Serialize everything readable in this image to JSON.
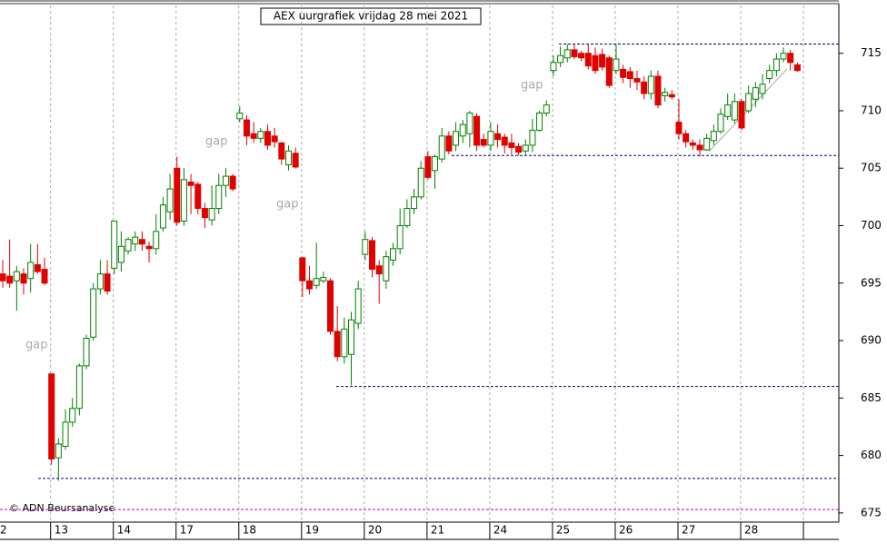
{
  "chart_data": {
    "type": "candlestick",
    "title": "AEX uurgrafiek vrijdag 28 mei 2021",
    "credit": "© ADN Beursanalyse",
    "annotations": [
      "gap",
      "gap",
      "gap",
      "gap"
    ],
    "categories": [
      "2",
      null,
      null,
      null,
      null,
      null,
      null,
      "13",
      null,
      null,
      null,
      null,
      null,
      null,
      null,
      null,
      "14",
      null,
      null,
      null,
      null,
      null,
      null,
      null,
      null,
      "17",
      null,
      null,
      null,
      null,
      null,
      null,
      null,
      null,
      "18",
      null,
      null,
      null,
      null,
      null,
      null,
      null,
      null,
      "19",
      null,
      null,
      null,
      null,
      null,
      null,
      null,
      null,
      "20",
      null,
      null,
      null,
      null,
      null,
      null,
      null,
      null,
      "21",
      null,
      null,
      null,
      null,
      null,
      null,
      null,
      null,
      "24",
      null,
      null,
      null,
      null,
      null,
      null,
      null,
      null,
      "25",
      null,
      null,
      null,
      null,
      null,
      null,
      null,
      null,
      "26",
      null,
      null,
      null,
      null,
      null,
      null,
      null,
      null,
      "27",
      null,
      null,
      null,
      null,
      null,
      null,
      null,
      null,
      "28",
      null,
      null,
      null,
      null,
      null,
      null,
      null,
      null
    ],
    "open": [
      695.8,
      695.6,
      695.2,
      695.8,
      695.4,
      696.6,
      696.2,
      687.1,
      679.8,
      680.8,
      682.9,
      684.1,
      687.8,
      690.3,
      694.5,
      695.8,
      696.3,
      696.8,
      697.8,
      698.4,
      698.8,
      698.2,
      698.0,
      699.8,
      701.2,
      705.0,
      700.4,
      703.8,
      703.6,
      701.5,
      700.5,
      701.5,
      703.5,
      704.3,
      709.3,
      709.2,
      708.0,
      707.6,
      708.2,
      707.8,
      707.2,
      705.3,
      706.3,
      697.2,
      695.2,
      694.8,
      695.2,
      695.2,
      690.8,
      688.6,
      688.8,
      691.5,
      697.5,
      698.7,
      696.5,
      695.2,
      697.0,
      698.0,
      700.0,
      701.5,
      702.5,
      706.0,
      704.8,
      705.8,
      707.8,
      707.0,
      707.8,
      708.0,
      709.5,
      707.5,
      707.0,
      708.0,
      707.7,
      707.2,
      706.9,
      706.5,
      707.0,
      708.3,
      709.8,
      713.5,
      714.2,
      714.6,
      715.3,
      715.0,
      715.0,
      714.8,
      714.9,
      714.6,
      713.5,
      713.6,
      713.4,
      712.8,
      712.5,
      711.5,
      713.0,
      711.3,
      711.4,
      709.0,
      708.0,
      707.2,
      707.0,
      706.6,
      707.4,
      708.2,
      709.5,
      709.2,
      710.8,
      710.0,
      711.0,
      711.5,
      712.8,
      713.5,
      714.5,
      715.0,
      714.0
    ],
    "high": [
      697.0,
      698.8,
      696.5,
      696.3,
      698.4,
      698.4,
      697.2,
      687.1,
      681.5,
      684.0,
      685.0,
      688.0,
      690.5,
      695.0,
      697.0,
      697.0,
      700.4,
      699.5,
      699.0,
      699.5,
      699.5,
      698.6,
      701.0,
      702.5,
      704.5,
      706.0,
      705.0,
      704.5,
      703.8,
      702.0,
      703.5,
      704.5,
      705.0,
      704.5,
      710.4,
      709.6,
      709.0,
      708.5,
      708.8,
      708.5,
      707.3,
      707.0,
      706.8,
      697.3,
      696.5,
      698.5,
      696.0,
      695.4,
      693.0,
      692.0,
      692.5,
      695.2,
      699.5,
      699.0,
      697.0,
      697.8,
      698.5,
      701.5,
      702.3,
      703.2,
      705.6,
      706.5,
      706.2,
      708.5,
      708.2,
      709.0,
      709.2,
      710.0,
      709.8,
      708.0,
      709.0,
      708.8,
      708.0,
      708.0,
      707.2,
      707.5,
      709.3,
      710.0,
      710.9,
      714.8,
      715.6,
      715.8,
      715.8,
      715.2,
      715.8,
      715.5,
      715.4,
      714.8,
      715.8,
      714.0,
      713.8,
      713.5,
      713.0,
      713.5,
      713.5,
      712.0,
      711.8,
      711.0,
      708.3,
      707.5,
      707.5,
      708.0,
      708.8,
      710.2,
      711.5,
      711.5,
      711.0,
      712.2,
      712.5,
      713.2,
      714.0,
      715.0,
      715.5,
      715.3,
      714.2
    ],
    "low": [
      694.6,
      694.6,
      692.6,
      694.0,
      694.2,
      695.8,
      694.8,
      679.2,
      677.8,
      680.5,
      682.5,
      683.5,
      687.5,
      690.0,
      694.0,
      694.0,
      695.8,
      696.0,
      697.5,
      697.8,
      697.8,
      696.8,
      697.5,
      699.5,
      700.5,
      700.0,
      700.0,
      701.0,
      701.0,
      699.8,
      700.0,
      701.0,
      702.5,
      703.0,
      709.0,
      707.0,
      707.2,
      707.2,
      706.6,
      706.8,
      705.3,
      704.8,
      705.0,
      693.8,
      694.0,
      694.5,
      695.0,
      690.5,
      688.2,
      688.0,
      686.1,
      691.0,
      697.0,
      695.5,
      693.2,
      694.5,
      696.5,
      697.5,
      699.8,
      701.0,
      702.3,
      704.0,
      703.2,
      705.5,
      706.2,
      706.5,
      707.2,
      706.8,
      706.5,
      706.8,
      706.5,
      706.8,
      706.3,
      706.2,
      706.1,
      706.1,
      706.4,
      708.2,
      709.5,
      713.0,
      713.8,
      714.2,
      714.5,
      714.3,
      713.6,
      713.2,
      713.5,
      712.0,
      713.2,
      712.4,
      712.0,
      711.8,
      711.0,
      711.0,
      710.2,
      710.8,
      711.0,
      707.5,
      706.8,
      706.6,
      706.0,
      706.5,
      707.0,
      708.0,
      709.2,
      708.9,
      708.3,
      709.8,
      710.3,
      711.0,
      712.4,
      713.0,
      714.2,
      713.5,
      713.4
    ],
    "close": [
      695.2,
      695.0,
      696.0,
      695.0,
      696.8,
      696.0,
      695.0,
      679.7,
      681.0,
      682.9,
      684.1,
      687.8,
      690.2,
      694.5,
      695.8,
      694.3,
      700.4,
      698.2,
      698.8,
      699.0,
      698.4,
      698.0,
      699.5,
      701.8,
      703.2,
      700.3,
      704.0,
      703.5,
      701.5,
      700.7,
      701.5,
      703.5,
      704.3,
      703.2,
      709.8,
      707.8,
      707.6,
      708.2,
      707.0,
      707.3,
      705.8,
      706.5,
      705.1,
      695.2,
      694.5,
      695.4,
      695.5,
      690.8,
      688.6,
      691.0,
      691.8,
      694.5,
      698.8,
      696.2,
      695.8,
      697.3,
      698.0,
      700.0,
      701.5,
      702.5,
      705.0,
      704.2,
      706.0,
      707.8,
      706.5,
      708.2,
      708.8,
      709.8,
      707.0,
      707.0,
      708.2,
      707.5,
      707.0,
      706.8,
      706.4,
      707.0,
      708.3,
      709.8,
      710.5,
      714.2,
      714.8,
      715.3,
      714.7,
      714.6,
      713.9,
      713.5,
      713.8,
      712.2,
      714.5,
      712.9,
      712.8,
      712.5,
      711.5,
      713.0,
      710.5,
      711.6,
      711.2,
      708.0,
      707.3,
      707.0,
      706.6,
      707.6,
      708.2,
      709.7,
      710.5,
      710.8,
      708.5,
      711.5,
      712.0,
      712.3,
      713.5,
      714.5,
      715.0,
      714.2,
      713.5
    ],
    "up_color": "#008000",
    "down_color": "#e00000",
    "hlines": [
      {
        "value": 715.8,
        "color": "#000080"
      },
      {
        "value": 706.1,
        "color": "#000080"
      },
      {
        "value": 686.0,
        "color": "#000080"
      },
      {
        "value": 678.0,
        "color": "#000080"
      },
      {
        "value": 675.3,
        "color": "#c000c0"
      }
    ],
    "ylim": [
      674.2,
      719.4
    ],
    "yticks": [
      675,
      680,
      685,
      690,
      695,
      700,
      705,
      710,
      715
    ]
  }
}
